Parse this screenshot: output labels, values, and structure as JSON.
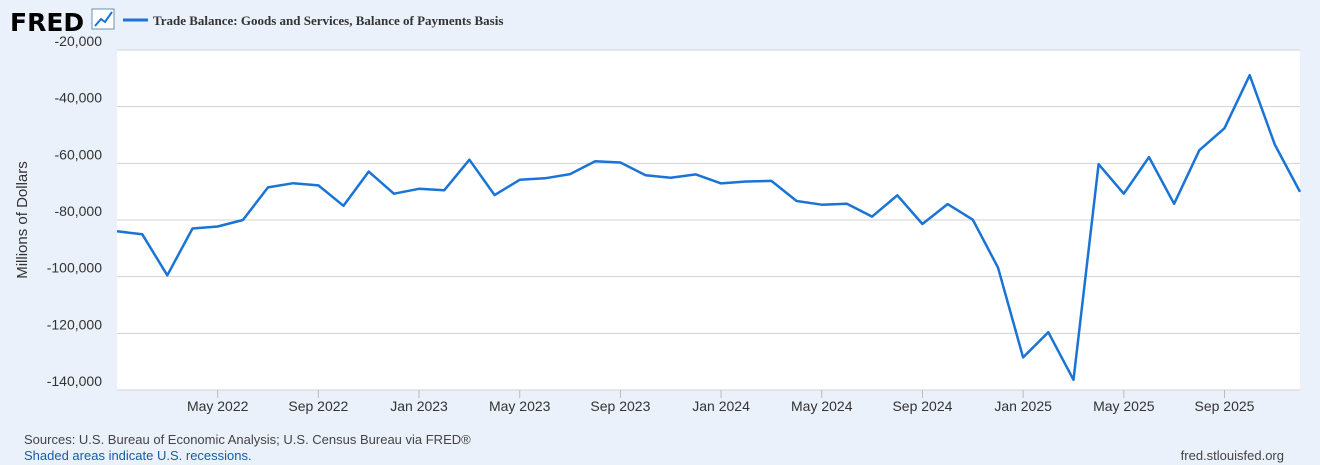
{
  "header": {
    "logo_text": "FRED",
    "logo_icon": "line-chart-icon"
  },
  "chart_data": {
    "type": "line",
    "title": "",
    "xlabel": "",
    "ylabel": "Millions of Dollars",
    "ylim": [
      -140000,
      -20000
    ],
    "y_ticks": [
      -20000,
      -40000,
      -60000,
      -80000,
      -100000,
      -120000,
      -140000
    ],
    "y_tick_labels": [
      "-20,000",
      "-40,000",
      "-60,000",
      "-80,000",
      "-100,000",
      "-120,000",
      "-140,000"
    ],
    "xlim": [
      "2022-01",
      "2025-12"
    ],
    "x_ticks": [
      "2022-05",
      "2022-09",
      "2023-01",
      "2023-05",
      "2023-09",
      "2024-01",
      "2024-05",
      "2024-09",
      "2025-01",
      "2025-05",
      "2025-09"
    ],
    "x_tick_labels": [
      "May 2022",
      "Sep 2022",
      "Jan 2023",
      "May 2023",
      "Sep 2023",
      "Jan 2024",
      "May 2024",
      "Sep 2024",
      "Jan 2025",
      "May 2025",
      "Sep 2025"
    ],
    "grid": true,
    "legend": "top-left",
    "series": [
      {
        "name": "Trade Balance: Goods and Services, Balance of Payments Basis",
        "color": "#1a74d6",
        "x": [
          "2022-01",
          "2022-02",
          "2022-03",
          "2022-04",
          "2022-05",
          "2022-06",
          "2022-07",
          "2022-08",
          "2022-09",
          "2022-10",
          "2022-11",
          "2022-12",
          "2023-01",
          "2023-02",
          "2023-03",
          "2023-04",
          "2023-05",
          "2023-06",
          "2023-07",
          "2023-08",
          "2023-09",
          "2023-10",
          "2023-11",
          "2023-12",
          "2024-01",
          "2024-02",
          "2024-03",
          "2024-04",
          "2024-05",
          "2024-06",
          "2024-07",
          "2024-08",
          "2024-09",
          "2024-10",
          "2024-11",
          "2024-12",
          "2025-01",
          "2025-02",
          "2025-03",
          "2025-04",
          "2025-05",
          "2025-06",
          "2025-07",
          "2025-08",
          "2025-09",
          "2025-10",
          "2025-11",
          "2025-12"
        ],
        "values": [
          -84000,
          -85000,
          -99500,
          -83000,
          -82300,
          -80000,
          -68500,
          -67000,
          -67800,
          -75000,
          -62900,
          -70700,
          -69000,
          -69500,
          -58700,
          -71200,
          -65800,
          -65300,
          -63800,
          -59300,
          -59700,
          -64200,
          -65100,
          -63900,
          -67100,
          -66400,
          -66200,
          -73300,
          -74600,
          -74300,
          -78800,
          -71300,
          -81400,
          -74400,
          -79900,
          -96800,
          -128500,
          -119600,
          -136400,
          -60300,
          -70700,
          -57800,
          -74300,
          -55400,
          -47600,
          -28900,
          -53400,
          -70100
        ]
      }
    ]
  },
  "footer": {
    "sources": "Sources: U.S. Bureau of Economic Analysis; U.S. Census Bureau via FRED®",
    "recession_note": "Shaded areas indicate U.S. recessions.",
    "site": "fred.stlouisfed.org"
  }
}
